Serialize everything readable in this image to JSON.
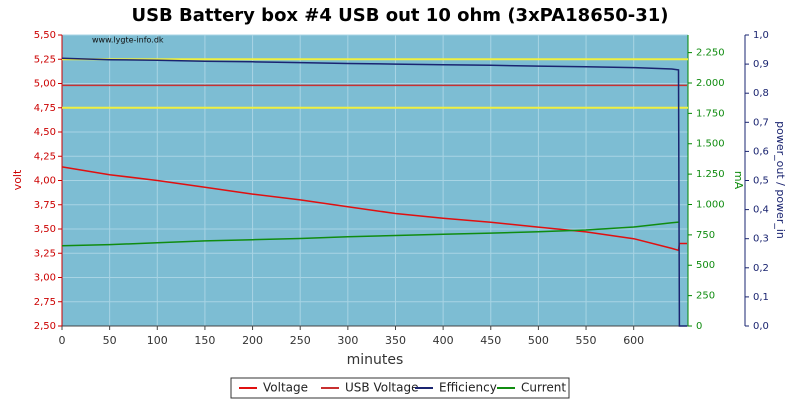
{
  "chart_data": {
    "type": "line",
    "title": "USB Battery box #4 USB out 10 ohm (3xPA18650-31)",
    "watermark": "www.lygte-info.dk",
    "xlabel": "minutes",
    "ylabel": "volt",
    "y2label": "mA",
    "y3label": "power_out / power_in",
    "xlim": [
      0,
      657
    ],
    "xticks": [
      0,
      50,
      100,
      150,
      200,
      250,
      300,
      350,
      400,
      450,
      500,
      550,
      600
    ],
    "ylim": [
      2.5,
      5.5
    ],
    "yticks": [
      {
        "value": 2.5,
        "label": "2,50"
      },
      {
        "value": 2.75,
        "label": "2,75"
      },
      {
        "value": 3.0,
        "label": "3,00"
      },
      {
        "value": 3.25,
        "label": "3,25"
      },
      {
        "value": 3.5,
        "label": "3,50"
      },
      {
        "value": 3.75,
        "label": "3,75"
      },
      {
        "value": 4.0,
        "label": "4,00"
      },
      {
        "value": 4.25,
        "label": "4,25"
      },
      {
        "value": 4.5,
        "label": "4,50"
      },
      {
        "value": 4.75,
        "label": "4,75"
      },
      {
        "value": 5.0,
        "label": "5,00"
      },
      {
        "value": 5.25,
        "label": "5,25"
      },
      {
        "value": 5.5,
        "label": "5,50"
      }
    ],
    "y2lim": [
      0,
      2395
    ],
    "y2ticks": [
      0,
      250,
      500,
      750,
      {
        "value": 1000,
        "label": "1.000"
      },
      {
        "value": 1250,
        "label": "1.250"
      },
      {
        "value": 1500,
        "label": "1.500"
      },
      {
        "value": 1750,
        "label": "1.750"
      },
      {
        "value": 2000,
        "label": "2.000"
      },
      {
        "value": 2250,
        "label": "2.250"
      }
    ],
    "y3lim": [
      0,
      1
    ],
    "y3ticks": [
      {
        "value": 0,
        "label": "0,0"
      },
      {
        "value": 0.1,
        "label": "0,1"
      },
      {
        "value": 0.2,
        "label": "0,2"
      },
      {
        "value": 0.3,
        "label": "0,3"
      },
      {
        "value": 0.4,
        "label": "0,4"
      },
      {
        "value": 0.5,
        "label": "0,5"
      },
      {
        "value": 0.6,
        "label": "0,6"
      },
      {
        "value": 0.7,
        "label": "0,7"
      },
      {
        "value": 0.8,
        "label": "0,8"
      },
      {
        "value": 0.9,
        "label": "0,9"
      },
      {
        "value": 1,
        "label": "1,0"
      }
    ],
    "reference_lines": {
      "color": "#f0f040",
      "values": [
        4.75,
        5.25
      ]
    },
    "background": "#7dbdd3",
    "x": [
      0,
      50,
      100,
      150,
      200,
      250,
      300,
      350,
      400,
      450,
      500,
      550,
      600,
      640,
      647,
      648,
      656
    ],
    "series": [
      {
        "name": "Voltage",
        "color": "#e01010",
        "axis": "y",
        "values": [
          4.14,
          4.06,
          4.0,
          3.93,
          3.86,
          3.8,
          3.73,
          3.66,
          3.61,
          3.57,
          3.52,
          3.47,
          3.4,
          3.3,
          3.28,
          3.35,
          3.35
        ]
      },
      {
        "name": "USB Voltage",
        "color": "#c83030",
        "axis": "y",
        "values": [
          4.98,
          4.98,
          4.98,
          4.98,
          4.98,
          4.98,
          4.98,
          4.98,
          4.98,
          4.98,
          4.98,
          4.98,
          4.98,
          4.98,
          4.98,
          4.98,
          4.98
        ]
      },
      {
        "name": "Efficiency",
        "color": "#1a2470",
        "axis": "y3",
        "values": [
          0.92,
          0.915,
          0.913,
          0.91,
          0.908,
          0.905,
          0.902,
          0.9,
          0.898,
          0.896,
          0.893,
          0.891,
          0.888,
          0.883,
          0.88,
          0,
          0
        ]
      },
      {
        "name": "Current",
        "color": "#108c10",
        "axis": "y2",
        "values": [
          660,
          670,
          685,
          700,
          710,
          720,
          735,
          745,
          755,
          765,
          775,
          790,
          815,
          850,
          855,
          null,
          null
        ]
      }
    ]
  }
}
